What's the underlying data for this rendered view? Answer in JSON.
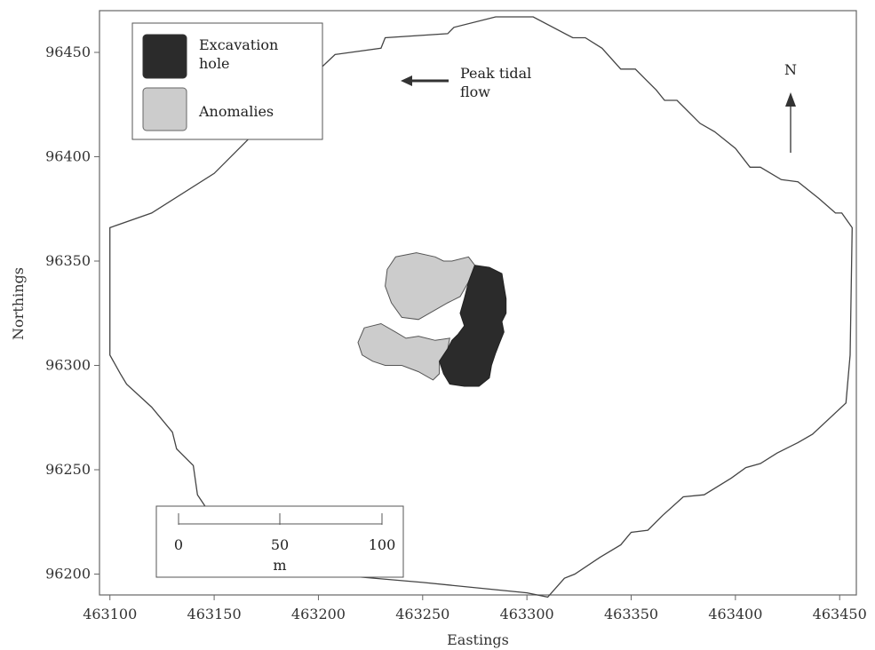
{
  "chart_data": {
    "type": "map",
    "xlabel": "Eastings",
    "ylabel": "Northings",
    "xlim": [
      463095,
      463458
    ],
    "ylim": [
      96190,
      96470
    ],
    "x_ticks": [
      463100,
      463150,
      463200,
      463250,
      463300,
      463350,
      463400,
      463450
    ],
    "y_ticks": [
      96200,
      96250,
      96300,
      96350,
      96400,
      96450
    ],
    "survey_boundary": [
      [
        463100,
        96366
      ],
      [
        463120,
        96373
      ],
      [
        463150,
        96392
      ],
      [
        463170,
        96412
      ],
      [
        463190,
        96432
      ],
      [
        463208,
        96449
      ],
      [
        463230,
        96452
      ],
      [
        463232,
        96457
      ],
      [
        463262,
        96459
      ],
      [
        463265,
        96462
      ],
      [
        463285,
        96467
      ],
      [
        463303,
        96467
      ],
      [
        463322,
        96457
      ],
      [
        463328,
        96457
      ],
      [
        463336,
        96452
      ],
      [
        463345,
        96442
      ],
      [
        463352,
        96442
      ],
      [
        463357,
        96437
      ],
      [
        463362,
        96432
      ],
      [
        463366,
        96427
      ],
      [
        463372,
        96427
      ],
      [
        463383,
        96416
      ],
      [
        463390,
        96412
      ],
      [
        463400,
        96404
      ],
      [
        463407,
        96395
      ],
      [
        463412,
        96395
      ],
      [
        463422,
        96389
      ],
      [
        463430,
        96388
      ],
      [
        463440,
        96380
      ],
      [
        463448,
        96373
      ],
      [
        463451,
        96373
      ],
      [
        463456,
        96366
      ],
      [
        463455,
        96305
      ],
      [
        463453,
        96282
      ],
      [
        463437,
        96267
      ],
      [
        463430,
        96263
      ],
      [
        463420,
        96258
      ],
      [
        463412,
        96253
      ],
      [
        463405,
        96251
      ],
      [
        463398,
        96246
      ],
      [
        463385,
        96238
      ],
      [
        463375,
        96237
      ],
      [
        463365,
        96228
      ],
      [
        463358,
        96221
      ],
      [
        463350,
        96220
      ],
      [
        463345,
        96214
      ],
      [
        463335,
        96208
      ],
      [
        463323,
        96200
      ],
      [
        463318,
        96198
      ],
      [
        463310,
        96189
      ],
      [
        463300,
        96191
      ],
      [
        463250,
        96196
      ],
      [
        463180,
        96202
      ],
      [
        463160,
        96210
      ],
      [
        463150,
        96226
      ],
      [
        463142,
        96238
      ],
      [
        463140,
        96252
      ],
      [
        463132,
        96260
      ],
      [
        463130,
        96268
      ],
      [
        463120,
        96280
      ],
      [
        463108,
        96291
      ],
      [
        463105,
        96296
      ],
      [
        463100,
        96305
      ]
    ],
    "excavation_hole": [
      [
        463275,
        96348
      ],
      [
        463282,
        96347
      ],
      [
        463288,
        96344
      ],
      [
        463289,
        96338
      ],
      [
        463290,
        96332
      ],
      [
        463290,
        96325
      ],
      [
        463288,
        96321
      ],
      [
        463289,
        96316
      ],
      [
        463287,
        96311
      ],
      [
        463285,
        96306
      ],
      [
        463283,
        96300
      ],
      [
        463282,
        96294
      ],
      [
        463277,
        96290
      ],
      [
        463270,
        96290
      ],
      [
        463263,
        96291
      ],
      [
        463260,
        96296
      ],
      [
        463258,
        96302
      ],
      [
        463262,
        96308
      ],
      [
        463264,
        96312
      ],
      [
        463267,
        96315
      ],
      [
        463270,
        96319
      ],
      [
        463268,
        96325
      ],
      [
        463270,
        96332
      ],
      [
        463272,
        96340
      ]
    ],
    "anomalies": [
      [
        [
          463237,
          96352
        ],
        [
          463247,
          96354
        ],
        [
          463256,
          96352
        ],
        [
          463260,
          96350
        ],
        [
          463264,
          96350
        ],
        [
          463272,
          96352
        ],
        [
          463275,
          96348
        ],
        [
          463272,
          96340
        ],
        [
          463268,
          96333
        ],
        [
          463262,
          96330
        ],
        [
          463255,
          96326
        ],
        [
          463248,
          96322
        ],
        [
          463240,
          96323
        ],
        [
          463235,
          96330
        ],
        [
          463232,
          96338
        ],
        [
          463233,
          96346
        ]
      ],
      [
        [
          463222,
          96318
        ],
        [
          463230,
          96320
        ],
        [
          463237,
          96316
        ],
        [
          463242,
          96313
        ],
        [
          463248,
          96314
        ],
        [
          463256,
          96312
        ],
        [
          463263,
          96313
        ],
        [
          463262,
          96308
        ],
        [
          463258,
          96302
        ],
        [
          463258,
          96296
        ],
        [
          463255,
          96293
        ],
        [
          463248,
          96297
        ],
        [
          463240,
          96300
        ],
        [
          463232,
          96300
        ],
        [
          463226,
          96302
        ],
        [
          463221,
          96305
        ],
        [
          463219,
          96311
        ]
      ]
    ],
    "legend": {
      "items": [
        {
          "label_lines": [
            "Excavation",
            "hole"
          ],
          "color": "#2b2b2b"
        },
        {
          "label_lines": [
            "Anomalies"
          ],
          "color": "#cccccc"
        }
      ]
    },
    "annotation": {
      "lines": [
        "Peak tidal",
        "flow"
      ],
      "direction": "west"
    },
    "north_arrow": "N",
    "scale_bar": {
      "ticks": [
        "0",
        "50",
        "100"
      ],
      "unit": "m"
    },
    "colors": {
      "excavation_fill": "#2b2b2b",
      "anomaly_fill": "#cccccc",
      "boundary_stroke": "#444444",
      "text": "#222222"
    }
  }
}
